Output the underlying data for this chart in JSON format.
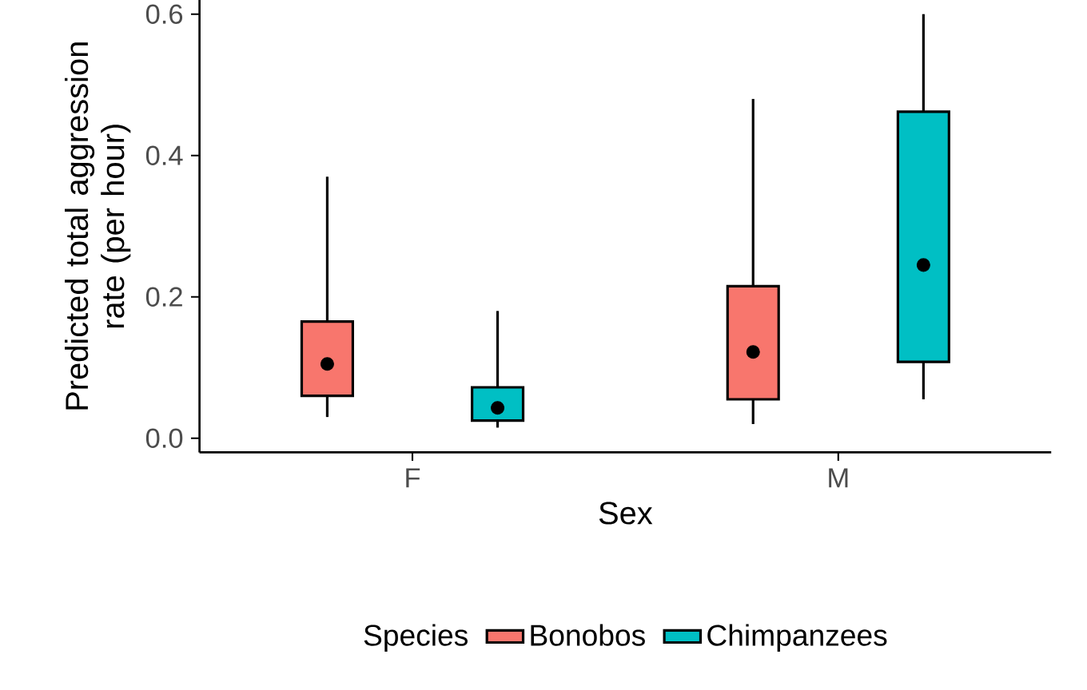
{
  "chart_data": {
    "type": "box",
    "xlabel": "Sex",
    "ylabel": "Predicted total aggression rate (per hour)",
    "legend_title": "Species",
    "legend": "bottom",
    "categories": [
      "F",
      "M"
    ],
    "ylim": [
      -0.02,
      0.62
    ],
    "yticks": [
      {
        "value": 0,
        "label": "0.0"
      },
      0.2,
      0.4,
      0.6
    ],
    "series": [
      {
        "name": "Bonobos",
        "color": "#f8766d",
        "boxes": [
          {
            "low": 0.03,
            "q1": 0.06,
            "median": 0.105,
            "q3": 0.165,
            "high": 0.37
          },
          {
            "low": 0.02,
            "q1": 0.055,
            "median": 0.122,
            "q3": 0.215,
            "high": 0.48
          }
        ]
      },
      {
        "name": "Chimpanzees",
        "color": "#00bfc4",
        "boxes": [
          {
            "low": 0.015,
            "q1": 0.025,
            "median": 0.043,
            "q3": 0.072,
            "high": 0.18
          },
          {
            "low": 0.055,
            "q1": 0.108,
            "median": 0.245,
            "q3": 0.462,
            "high": 0.6
          }
        ]
      }
    ]
  }
}
